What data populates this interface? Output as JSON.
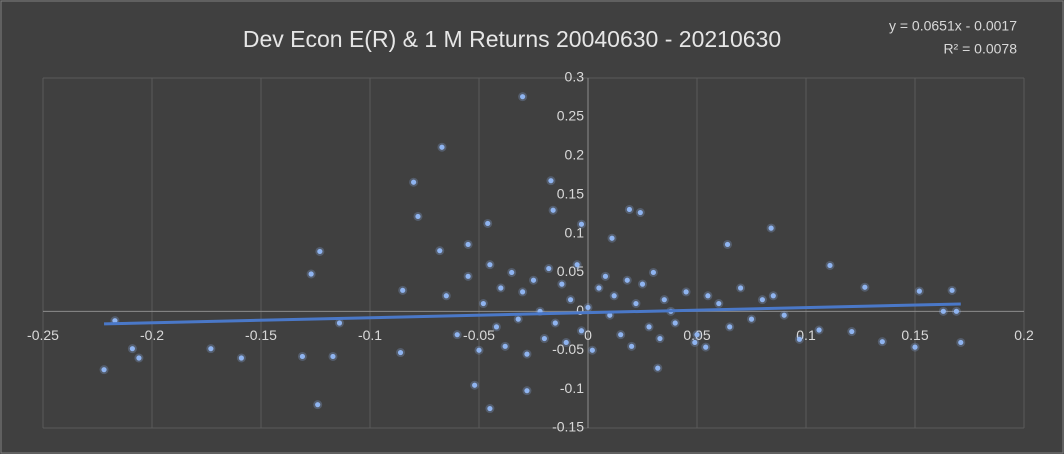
{
  "chart_data": {
    "type": "scatter",
    "title": "Dev Econ    E(R) & 1 M Returns  20040630 - 20210630",
    "trendline": {
      "equation": "y = 0.0651x - 0.0017",
      "r_squared": "R² = 0.0078",
      "slope": 0.0651,
      "intercept": -0.0017,
      "color": "#4a78c8"
    },
    "color": "#8fb4f0",
    "x": [
      -0.222,
      -0.217,
      -0.209,
      -0.206,
      -0.173,
      -0.159,
      -0.131,
      -0.127,
      -0.123,
      -0.124,
      -0.117,
      -0.114,
      -0.086,
      -0.085,
      -0.08,
      -0.078,
      -0.067,
      -0.068,
      -0.046,
      -0.055,
      -0.03,
      -0.017,
      -0.016,
      -0.003,
      0.019,
      0.024,
      0.011,
      -0.045,
      -0.028,
      -0.052,
      0.064,
      0.084,
      0.111,
      0.127,
      0.135,
      0.15,
      0.152,
      0.167,
      0.171,
      0.169,
      0.163,
      0.121,
      0.106,
      0.097,
      0.032,
      0.049,
      0.054,
      -0.065,
      -0.06,
      -0.055,
      -0.05,
      -0.048,
      -0.045,
      -0.042,
      -0.04,
      -0.038,
      -0.035,
      -0.032,
      -0.03,
      -0.028,
      -0.025,
      -0.022,
      -0.02,
      -0.018,
      -0.015,
      -0.012,
      -0.01,
      -0.008,
      -0.005,
      -0.003,
      0,
      0.002,
      0.005,
      0.008,
      0.01,
      0.012,
      0.015,
      0.018,
      0.02,
      0.022,
      0.025,
      0.028,
      0.03,
      0.033,
      0.035,
      0.038,
      0.04,
      0.045,
      0.05,
      0.055,
      0.06,
      0.065,
      0.07,
      0.075,
      0.08,
      0.085,
      0.09
    ],
    "values": [
      -0.075,
      -0.012,
      -0.048,
      -0.06,
      -0.048,
      -0.06,
      -0.058,
      0.048,
      0.077,
      -0.12,
      -0.058,
      -0.015,
      -0.053,
      0.027,
      0.166,
      0.122,
      0.211,
      0.078,
      0.113,
      0.086,
      0.276,
      0.168,
      0.13,
      0.112,
      0.131,
      0.127,
      0.094,
      -0.125,
      -0.102,
      -0.095,
      0.086,
      0.107,
      0.059,
      0.031,
      -0.039,
      -0.046,
      0.026,
      0.027,
      -0.04,
      0,
      0,
      -0.026,
      -0.024,
      -0.036,
      -0.073,
      -0.04,
      -0.046,
      0.02,
      -0.03,
      0.045,
      -0.05,
      0.01,
      0.06,
      -0.02,
      0.03,
      -0.045,
      0.05,
      -0.01,
      0.025,
      -0.055,
      0.04,
      0,
      -0.035,
      0.055,
      -0.015,
      0.035,
      -0.04,
      0.015,
      0.06,
      -0.025,
      0.005,
      -0.05,
      0.03,
      0.045,
      -0.005,
      0.02,
      -0.03,
      0.04,
      -0.045,
      0.01,
      0.035,
      -0.02,
      0.05,
      -0.035,
      0.015,
      0,
      -0.015,
      0.025,
      -0.03,
      0.02,
      0.01,
      -0.02,
      0.03,
      -0.01,
      0.015,
      0.02,
      -0.005
    ],
    "xlim": [
      -0.25,
      0.2
    ],
    "xticks": [
      -0.25,
      -0.2,
      -0.15,
      -0.1,
      -0.05,
      0,
      0.05,
      0.1,
      0.15,
      0.2
    ],
    "ylim": [
      -0.15,
      0.3
    ],
    "yticks": [
      -0.15,
      -0.1,
      -0.05,
      0,
      0.05,
      0.1,
      0.15,
      0.2,
      0.25,
      0.3
    ],
    "grid": true
  }
}
